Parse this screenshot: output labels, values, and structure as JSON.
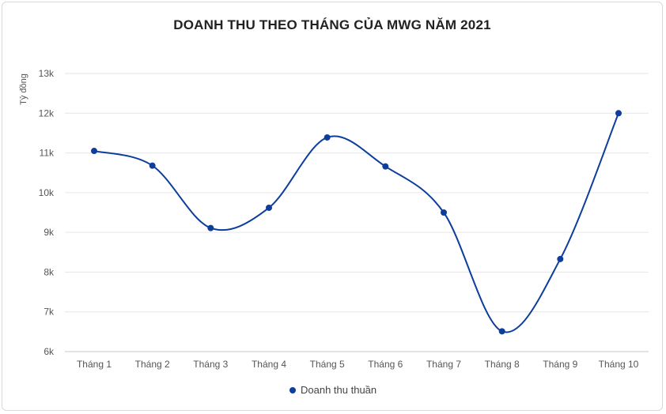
{
  "chart_data": {
    "type": "line",
    "title": "DOANH THU THEO THÁNG CỦA MWG NĂM 2021",
    "ylabel": "Tỷ đồng",
    "xlabel": "",
    "categories": [
      "Tháng 1",
      "Tháng 2",
      "Tháng 3",
      "Tháng 4",
      "Tháng 5",
      "Tháng 6",
      "Tháng 7",
      "Tháng 8",
      "Tháng 9",
      "Tháng 10"
    ],
    "series": [
      {
        "name": "Doanh thu thuần",
        "values": [
          11050,
          10680,
          9110,
          9620,
          11390,
          10660,
          9500,
          6510,
          8330,
          12000
        ],
        "color": "#0d3e9b"
      }
    ],
    "ylim": [
      6000,
      13000
    ],
    "yticks": [
      6000,
      7000,
      8000,
      9000,
      10000,
      11000,
      12000,
      13000
    ],
    "ytick_labels": [
      "6k",
      "7k",
      "8k",
      "9k",
      "10k",
      "11k",
      "12k",
      "13k"
    ],
    "grid": true,
    "legend": "bottom-center"
  }
}
